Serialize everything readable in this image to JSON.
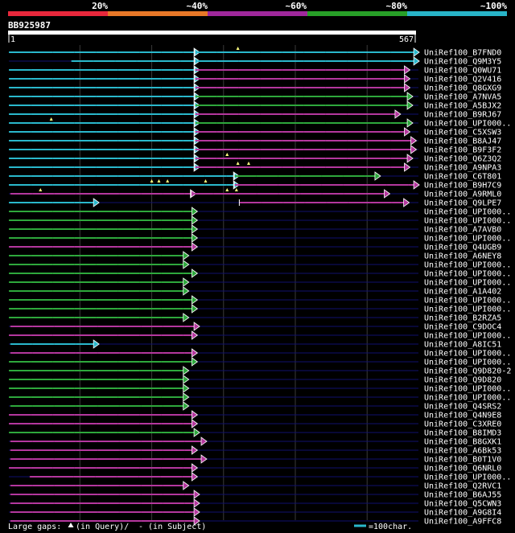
{
  "scale": {
    "labels": [
      "20%",
      "~40%",
      "~60%",
      "~80%",
      "~100%"
    ],
    "segment_colors": [
      "#e8283c",
      "#e87828",
      "#a0289c",
      "#28a028",
      "#28b4c8"
    ]
  },
  "query": {
    "id": "BB925987",
    "start": "1",
    "end": "567",
    "length": 567
  },
  "colors": {
    "cyan": "#2ab8cc",
    "magenta": "#b4379e",
    "green": "#2ea83c",
    "grid": "#3a3a3a",
    "navy": "#10106e",
    "marker": "#ffff80"
  },
  "hits": [
    {
      "name": "UniRef100_B7FND0",
      "segments": [
        {
          "s": 1,
          "e": 260,
          "c": "cyan"
        },
        {
          "s": 260,
          "e": 566,
          "c": "cyan"
        }
      ],
      "markers": [
        320
      ]
    },
    {
      "name": "UniRef100_Q9M3Y5",
      "segments": [
        {
          "s": 88,
          "e": 260,
          "c": "cyan"
        },
        {
          "s": 260,
          "e": 566,
          "c": "cyan"
        }
      ],
      "markers": []
    },
    {
      "name": "UniRef100_Q0WU71",
      "segments": [
        {
          "s": 1,
          "e": 260,
          "c": "cyan"
        },
        {
          "s": 260,
          "e": 553,
          "c": "magenta"
        }
      ],
      "markers": []
    },
    {
      "name": "UniRef100_Q2V416",
      "segments": [
        {
          "s": 1,
          "e": 260,
          "c": "cyan"
        },
        {
          "s": 260,
          "e": 553,
          "c": "magenta"
        }
      ],
      "markers": []
    },
    {
      "name": "UniRef100_Q8GXG9",
      "segments": [
        {
          "s": 1,
          "e": 260,
          "c": "cyan"
        },
        {
          "s": 260,
          "e": 553,
          "c": "magenta"
        }
      ],
      "markers": []
    },
    {
      "name": "UniRef100_A7NVA5",
      "segments": [
        {
          "s": 1,
          "e": 260,
          "c": "cyan"
        },
        {
          "s": 260,
          "e": 557,
          "c": "green"
        }
      ],
      "markers": []
    },
    {
      "name": "UniRef100_A5BJX2",
      "segments": [
        {
          "s": 1,
          "e": 260,
          "c": "cyan"
        },
        {
          "s": 260,
          "e": 557,
          "c": "green"
        }
      ],
      "markers": []
    },
    {
      "name": "UniRef100_B9RJ67",
      "segments": [
        {
          "s": 1,
          "e": 260,
          "c": "cyan"
        },
        {
          "s": 260,
          "e": 540,
          "c": "magenta"
        }
      ],
      "markers": []
    },
    {
      "name": "UniRef100_UPI000..",
      "segments": [
        {
          "s": 1,
          "e": 260,
          "c": "cyan"
        },
        {
          "s": 260,
          "e": 557,
          "c": "green"
        }
      ],
      "markers": [
        60
      ]
    },
    {
      "name": "UniRef100_C5XSW3",
      "segments": [
        {
          "s": 1,
          "e": 260,
          "c": "cyan"
        },
        {
          "s": 260,
          "e": 553,
          "c": "magenta"
        }
      ],
      "markers": []
    },
    {
      "name": "UniRef100_B8AJ47",
      "segments": [
        {
          "s": 1,
          "e": 260,
          "c": "cyan"
        },
        {
          "s": 260,
          "e": 562,
          "c": "magenta"
        }
      ],
      "markers": []
    },
    {
      "name": "UniRef100_B9F3F2",
      "segments": [
        {
          "s": 1,
          "e": 260,
          "c": "cyan"
        },
        {
          "s": 260,
          "e": 562,
          "c": "magenta"
        }
      ],
      "markers": []
    },
    {
      "name": "UniRef100_Q6Z3Q2",
      "segments": [
        {
          "s": 1,
          "e": 260,
          "c": "cyan"
        },
        {
          "s": 260,
          "e": 557,
          "c": "magenta"
        }
      ],
      "markers": [
        305
      ]
    },
    {
      "name": "UniRef100_A9NPA3",
      "segments": [
        {
          "s": 1,
          "e": 260,
          "c": "cyan"
        },
        {
          "s": 260,
          "e": 553,
          "c": "magenta"
        }
      ],
      "markers": [
        320,
        335
      ]
    },
    {
      "name": "UniRef100_C6T801",
      "segments": [
        {
          "s": 1,
          "e": 315,
          "c": "cyan"
        },
        {
          "s": 315,
          "e": 512,
          "c": "green"
        }
      ],
      "markers": []
    },
    {
      "name": "UniRef100_B9H7C9",
      "segments": [
        {
          "s": 1,
          "e": 315,
          "c": "cyan"
        },
        {
          "s": 315,
          "e": 566,
          "c": "magenta"
        }
      ],
      "markers": [
        210,
        222,
        275,
        200
      ]
    },
    {
      "name": "UniRef100_A9RML0",
      "segments": [
        {
          "s": 3,
          "e": 255,
          "c": "magenta"
        },
        {
          "s": 255,
          "e": 525,
          "c": "magenta"
        }
      ],
      "markers": [
        45,
        305,
        318
      ]
    },
    {
      "name": "UniRef100_Q9LPE7",
      "segments": [
        {
          "s": 1,
          "e": 120,
          "c": "cyan"
        },
        {
          "s": 322,
          "e": 552,
          "c": "magenta"
        }
      ],
      "markers": []
    },
    {
      "name": "UniRef100_UPI000..",
      "segments": [
        {
          "s": 1,
          "e": 257,
          "c": "green"
        }
      ],
      "markers": []
    },
    {
      "name": "UniRef100_UPI000..",
      "segments": [
        {
          "s": 1,
          "e": 257,
          "c": "green"
        }
      ],
      "markers": []
    },
    {
      "name": "UniRef100_A7AVB0",
      "segments": [
        {
          "s": 1,
          "e": 257,
          "c": "green"
        }
      ],
      "markers": []
    },
    {
      "name": "UniRef100_UPI000..",
      "segments": [
        {
          "s": 1,
          "e": 257,
          "c": "green"
        }
      ],
      "markers": []
    },
    {
      "name": "UniRef100_Q4UGB9",
      "segments": [
        {
          "s": 1,
          "e": 257,
          "c": "magenta"
        }
      ],
      "markers": []
    },
    {
      "name": "UniRef100_A6NEY8",
      "segments": [
        {
          "s": 1,
          "e": 245,
          "c": "green"
        }
      ],
      "markers": []
    },
    {
      "name": "UniRef100_UPI000..",
      "segments": [
        {
          "s": 1,
          "e": 245,
          "c": "green"
        }
      ],
      "markers": []
    },
    {
      "name": "UniRef100_UPI000..",
      "segments": [
        {
          "s": 1,
          "e": 257,
          "c": "green"
        }
      ],
      "markers": []
    },
    {
      "name": "UniRef100_UPI000..",
      "segments": [
        {
          "s": 1,
          "e": 245,
          "c": "green"
        }
      ],
      "markers": []
    },
    {
      "name": "UniRef100_A1A402",
      "segments": [
        {
          "s": 1,
          "e": 245,
          "c": "green"
        }
      ],
      "markers": []
    },
    {
      "name": "UniRef100_UPI000..",
      "segments": [
        {
          "s": 1,
          "e": 257,
          "c": "green"
        }
      ],
      "markers": []
    },
    {
      "name": "UniRef100_UPI000..",
      "segments": [
        {
          "s": 1,
          "e": 257,
          "c": "green"
        }
      ],
      "markers": []
    },
    {
      "name": "UniRef100_B2RZA5",
      "segments": [
        {
          "s": 1,
          "e": 245,
          "c": "green"
        }
      ],
      "markers": []
    },
    {
      "name": "UniRef100_C9DOC4",
      "segments": [
        {
          "s": 3,
          "e": 260,
          "c": "magenta"
        }
      ],
      "markers": []
    },
    {
      "name": "UniRef100_UPI000..",
      "segments": [
        {
          "s": 1,
          "e": 257,
          "c": "magenta"
        }
      ],
      "markers": []
    },
    {
      "name": "UniRef100_A8IC51",
      "segments": [
        {
          "s": 3,
          "e": 120,
          "c": "cyan"
        }
      ],
      "markers": []
    },
    {
      "name": "UniRef100_UPI000..",
      "segments": [
        {
          "s": 3,
          "e": 257,
          "c": "magenta"
        }
      ],
      "markers": []
    },
    {
      "name": "UniRef100_UPI000..",
      "segments": [
        {
          "s": 1,
          "e": 257,
          "c": "green"
        }
      ],
      "markers": []
    },
    {
      "name": "UniRef100_Q9D820-2",
      "segments": [
        {
          "s": 1,
          "e": 245,
          "c": "green"
        }
      ],
      "markers": []
    },
    {
      "name": "UniRef100_Q9D820",
      "segments": [
        {
          "s": 1,
          "e": 245,
          "c": "green"
        }
      ],
      "markers": []
    },
    {
      "name": "UniRef100_UPI000..",
      "segments": [
        {
          "s": 1,
          "e": 245,
          "c": "green"
        }
      ],
      "markers": []
    },
    {
      "name": "UniRef100_UPI000..",
      "segments": [
        {
          "s": 1,
          "e": 245,
          "c": "green"
        }
      ],
      "markers": []
    },
    {
      "name": "UniRef100_Q4SRS2",
      "segments": [
        {
          "s": 3,
          "e": 245,
          "c": "green"
        }
      ],
      "markers": []
    },
    {
      "name": "UniRef100_Q4N9E8",
      "segments": [
        {
          "s": 1,
          "e": 257,
          "c": "magenta"
        }
      ],
      "markers": []
    },
    {
      "name": "UniRef100_C3XRE0",
      "segments": [
        {
          "s": 1,
          "e": 257,
          "c": "magenta"
        }
      ],
      "markers": []
    },
    {
      "name": "UniRef100_B8IMD3",
      "segments": [
        {
          "s": 1,
          "e": 260,
          "c": "green"
        }
      ],
      "markers": []
    },
    {
      "name": "UniRef100_B8GXK1",
      "segments": [
        {
          "s": 3,
          "e": 270,
          "c": "magenta"
        }
      ],
      "markers": []
    },
    {
      "name": "UniRef100_A6Bk53",
      "segments": [
        {
          "s": 3,
          "e": 257,
          "c": "magenta"
        }
      ],
      "markers": []
    },
    {
      "name": "UniRef100_B0T1V0",
      "segments": [
        {
          "s": 3,
          "e": 270,
          "c": "magenta"
        }
      ],
      "markers": []
    },
    {
      "name": "UniRef100_Q6NRL0",
      "segments": [
        {
          "s": 1,
          "e": 257,
          "c": "magenta"
        }
      ],
      "markers": []
    },
    {
      "name": "UniRef100_UPI000..",
      "segments": [
        {
          "s": 30,
          "e": 257,
          "c": "magenta"
        }
      ],
      "markers": []
    },
    {
      "name": "UniRef100_Q2RVC1",
      "segments": [
        {
          "s": 3,
          "e": 245,
          "c": "magenta"
        }
      ],
      "markers": []
    },
    {
      "name": "UniRef100_B6AJ55",
      "segments": [
        {
          "s": 3,
          "e": 260,
          "c": "magenta"
        }
      ],
      "markers": []
    },
    {
      "name": "UniRef100_Q5CWN3",
      "segments": [
        {
          "s": 3,
          "e": 260,
          "c": "magenta"
        }
      ],
      "markers": []
    },
    {
      "name": "UniRef100_A9G8I4",
      "segments": [
        {
          "s": 3,
          "e": 260,
          "c": "magenta"
        }
      ],
      "markers": []
    },
    {
      "name": "UniRef100_A9FFC8",
      "segments": [
        {
          "s": 3,
          "e": 260,
          "c": "magenta"
        }
      ],
      "markers": []
    }
  ],
  "footer": {
    "gaps_prefix": "Large gaps:",
    "gaps_query": "(in Query)/",
    "gaps_subject": "- (in Subject)",
    "legend_label": "=100char."
  }
}
